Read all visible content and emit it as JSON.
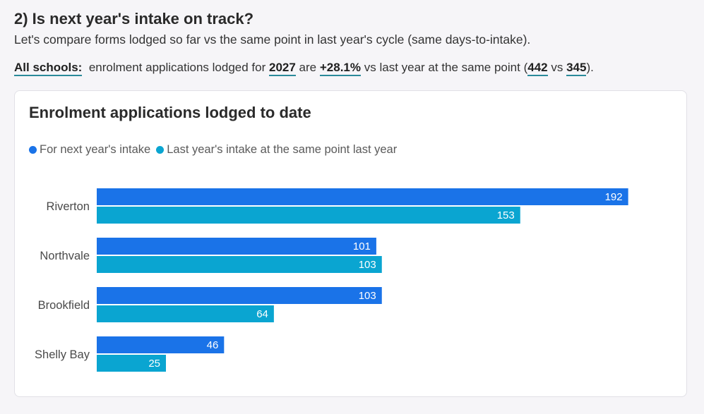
{
  "heading": "2) Is next year's intake on track?",
  "subtitle": "Let's compare forms lodged so far vs the same point in last year's cycle (same days-to-intake).",
  "summary": {
    "scope": "All schools:",
    "text1": "enrolment applications lodged for",
    "year": "2027",
    "text2": "are",
    "change": "+28.1%",
    "text3": "vs last year at the same point (",
    "current": "442",
    "text4": "vs",
    "previous": "345",
    "text5": ")."
  },
  "colors": {
    "next_year": "#1a73e8",
    "last_year": "#0aa5d1"
  },
  "chart_data": {
    "type": "bar",
    "orientation": "horizontal",
    "title": "Enrolment applications lodged to date",
    "categories": [
      "Riverton",
      "Northvale",
      "Brookfield",
      "Shelly Bay"
    ],
    "series": [
      {
        "name": "For next year's intake",
        "values": [
          192,
          101,
          103,
          46
        ]
      },
      {
        "name": "Last year's intake at the same point last year",
        "values": [
          153,
          103,
          64,
          25
        ]
      }
    ],
    "xlim": [
      0,
      200
    ],
    "grid": false,
    "legend_position": "top-left"
  }
}
